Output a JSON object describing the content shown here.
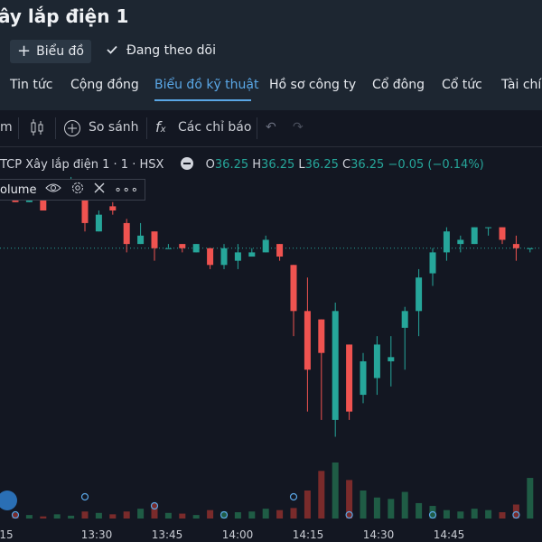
{
  "header": {
    "title": "ây lắp điện 1",
    "chart_button_label": "Biểu đồ",
    "follow_label": "Đang theo dõi"
  },
  "tabs": [
    {
      "label": "Tin tức",
      "active": false
    },
    {
      "label": "Cộng đồng",
      "active": false
    },
    {
      "label": "Biểu đồ kỹ thuật",
      "active": true
    },
    {
      "label": "Hồ sơ công ty",
      "active": false
    },
    {
      "label": "Cổ đông",
      "active": false
    },
    {
      "label": "Cổ tức",
      "active": false
    },
    {
      "label": "Tài chí",
      "active": false
    }
  ],
  "toolbar": {
    "interval_fragment": "m",
    "compare_label": "So sánh",
    "indicators_label": "Các chỉ báo"
  },
  "legend": {
    "symbol": "TCP Xây lắp điện 1 · 1 · HSX",
    "o_label": "O",
    "o_value": "36.25",
    "h_label": "H",
    "h_value": "36.25",
    "l_label": "L",
    "l_value": "36.25",
    "c_label": "C",
    "c_value": "36.25",
    "change": "−0.05 (−0.14%)"
  },
  "volume_label": "olume",
  "time_axis": [
    "15",
    "13:30",
    "13:45",
    "14:00",
    "14:15",
    "14:30",
    "14:45"
  ],
  "colors": {
    "up": "#26a69a",
    "down": "#ef5350",
    "accent": "#5aa7e6",
    "bg": "#131722"
  },
  "chart_data": {
    "type": "candlestick",
    "ohlc": [
      [
        37.0,
        37.0,
        36.8,
        36.8
      ],
      [
        36.8,
        36.85,
        36.8,
        36.85
      ],
      [
        36.85,
        36.85,
        36.7,
        36.7
      ],
      [
        36.9,
        37.0,
        36.9,
        36.95
      ],
      [
        37.05,
        37.1,
        37.0,
        37.05
      ],
      [
        36.85,
        36.85,
        36.45,
        36.55
      ],
      [
        36.45,
        36.7,
        36.45,
        36.65
      ],
      [
        36.75,
        36.8,
        36.65,
        36.7
      ],
      [
        36.55,
        36.6,
        36.2,
        36.3
      ],
      [
        36.3,
        36.55,
        36.3,
        36.4
      ],
      [
        36.45,
        36.45,
        36.1,
        36.25
      ],
      [
        36.25,
        36.3,
        36.25,
        36.25
      ],
      [
        36.3,
        36.3,
        36.2,
        36.25
      ],
      [
        36.2,
        36.3,
        36.2,
        36.3
      ],
      [
        36.25,
        36.25,
        36.0,
        36.05
      ],
      [
        36.05,
        36.3,
        36.0,
        36.25
      ],
      [
        36.1,
        36.3,
        36.0,
        36.2
      ],
      [
        36.15,
        36.25,
        36.15,
        36.2
      ],
      [
        36.2,
        36.4,
        36.2,
        36.35
      ],
      [
        36.3,
        36.3,
        36.1,
        36.15
      ],
      [
        36.05,
        36.05,
        35.2,
        35.5
      ],
      [
        35.5,
        35.9,
        34.3,
        34.8
      ],
      [
        35.4,
        35.4,
        34.2,
        35.0
      ],
      [
        34.2,
        35.6,
        34.0,
        35.5
      ],
      [
        35.1,
        35.1,
        34.2,
        34.3
      ],
      [
        34.5,
        35.0,
        34.4,
        34.9
      ],
      [
        34.7,
        35.2,
        34.5,
        35.1
      ],
      [
        34.9,
        35.2,
        34.6,
        34.95
      ],
      [
        35.3,
        35.55,
        34.8,
        35.5
      ],
      [
        35.5,
        36.0,
        35.2,
        35.9
      ],
      [
        35.95,
        36.25,
        35.8,
        36.2
      ],
      [
        36.2,
        36.5,
        36.1,
        36.45
      ],
      [
        36.3,
        36.4,
        36.2,
        36.35
      ],
      [
        36.3,
        36.5,
        36.3,
        36.5
      ],
      [
        36.5,
        36.5,
        36.4,
        36.5
      ],
      [
        36.5,
        36.5,
        36.3,
        36.35
      ],
      [
        36.3,
        36.4,
        36.1,
        36.25
      ],
      [
        36.25,
        36.25,
        36.2,
        36.25
      ]
    ],
    "volume": [
      8,
      5,
      3,
      6,
      4,
      10,
      8,
      6,
      10,
      14,
      22,
      8,
      7,
      5,
      12,
      10,
      9,
      10,
      14,
      12,
      15,
      40,
      68,
      80,
      55,
      40,
      30,
      28,
      38,
      22,
      18,
      12,
      10,
      14,
      12,
      9,
      20,
      58
    ],
    "x_ticks": [
      "15",
      "13:30",
      "13:45",
      "14:00",
      "14:15",
      "14:30",
      "14:45"
    ],
    "last_price": 36.25
  }
}
